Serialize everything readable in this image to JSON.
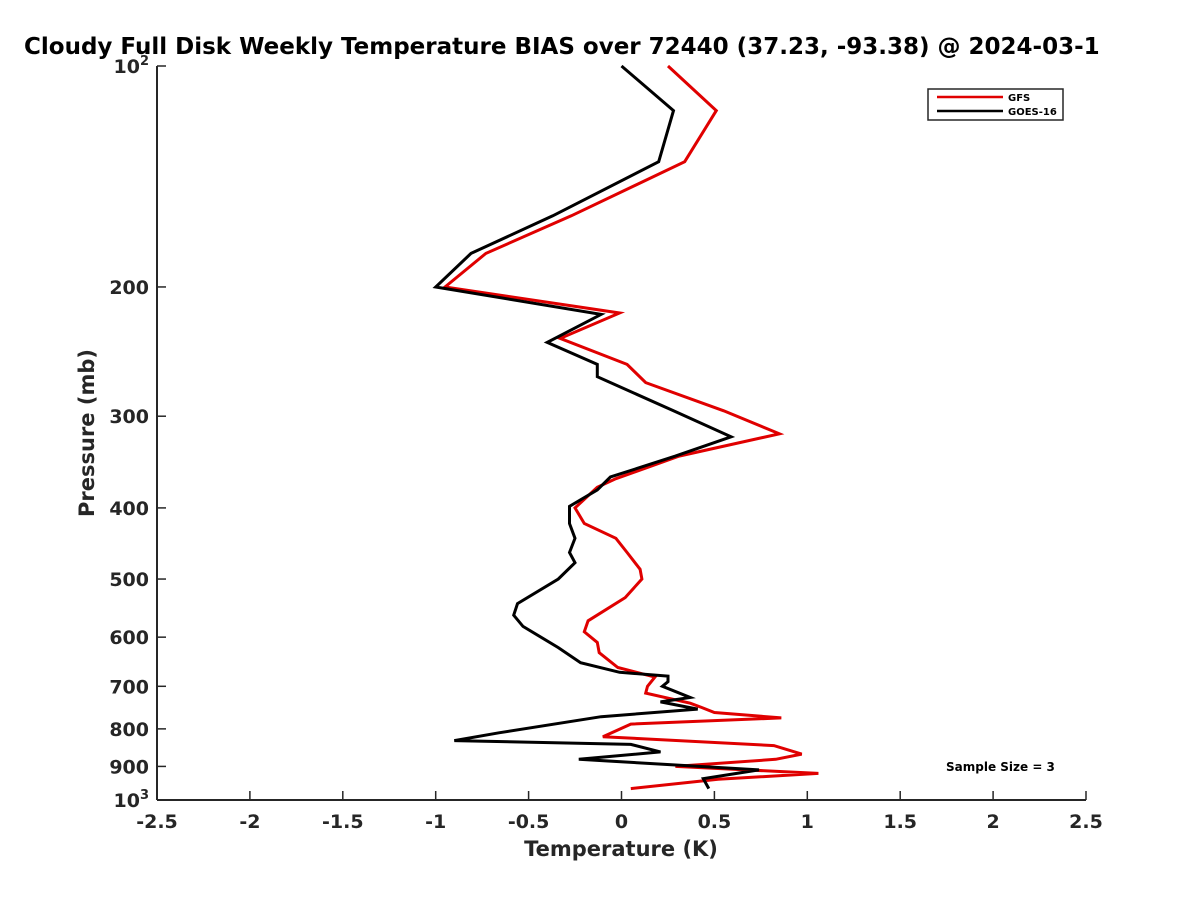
{
  "chart_data": {
    "type": "line",
    "title": "Cloudy Full Disk Weekly Temperature BIAS over 72440 (37.23, -93.38) @ 2024-03-1",
    "xlabel": "Temperature (K)",
    "ylabel": "Pressure (mb)",
    "xlim": [
      -2.5,
      2.5
    ],
    "ylim": [
      100,
      1000
    ],
    "y_scale": "log",
    "y_reversed": true,
    "grid": false,
    "legend_position": "top-right",
    "x_ticks": [
      "-2.5",
      "-2",
      "-1.5",
      "-1",
      "-0.5",
      "0",
      "0.5",
      "1",
      "1.5",
      "2",
      "2.5"
    ],
    "x_tick_values": [
      -2.5,
      -2,
      -1.5,
      -1,
      -0.5,
      0,
      0.5,
      1,
      1.5,
      2,
      2.5
    ],
    "y_ticks": [
      {
        "value": 100,
        "base": "10",
        "exp": "2"
      },
      {
        "value": 200,
        "label": "200"
      },
      {
        "value": 300,
        "label": "300"
      },
      {
        "value": 400,
        "label": "400"
      },
      {
        "value": 500,
        "label": "500"
      },
      {
        "value": 600,
        "label": "600"
      },
      {
        "value": 700,
        "label": "700"
      },
      {
        "value": 800,
        "label": "800"
      },
      {
        "value": 900,
        "label": "900"
      },
      {
        "value": 1000,
        "base": "10",
        "exp": "3"
      }
    ],
    "annotation": "Sample Size = 3",
    "series": [
      {
        "name": "GFS",
        "color": "#e00000",
        "points": [
          [
            0.25,
            100
          ],
          [
            0.51,
            115
          ],
          [
            0.34,
            135
          ],
          [
            -0.27,
            160
          ],
          [
            -0.73,
            180
          ],
          [
            -0.95,
            200
          ],
          [
            -0.01,
            217
          ],
          [
            -0.33,
            235
          ],
          [
            0.03,
            255
          ],
          [
            0.13,
            270
          ],
          [
            0.55,
            295
          ],
          [
            0.85,
            317
          ],
          [
            0.31,
            340
          ],
          [
            -0.03,
            365
          ],
          [
            -0.13,
            375
          ],
          [
            -0.25,
            400
          ],
          [
            -0.2,
            420
          ],
          [
            -0.03,
            440
          ],
          [
            0.03,
            460
          ],
          [
            0.1,
            485
          ],
          [
            0.11,
            500
          ],
          [
            0.02,
            530
          ],
          [
            -0.18,
            570
          ],
          [
            -0.2,
            590
          ],
          [
            -0.13,
            610
          ],
          [
            -0.12,
            630
          ],
          [
            -0.02,
            660
          ],
          [
            0.18,
            680
          ],
          [
            0.14,
            700
          ],
          [
            0.13,
            715
          ],
          [
            0.37,
            738
          ],
          [
            0.43,
            748
          ],
          [
            0.5,
            760
          ],
          [
            0.86,
            773
          ],
          [
            0.05,
            788
          ],
          [
            -0.1,
            820
          ],
          [
            0.82,
            843
          ],
          [
            0.97,
            866
          ],
          [
            0.83,
            880
          ],
          [
            0.29,
            900
          ],
          [
            1.06,
            920
          ],
          [
            0.52,
            937
          ],
          [
            0.05,
            965
          ]
        ]
      },
      {
        "name": "GOES-16",
        "color": "#000000",
        "points": [
          [
            0.0,
            100
          ],
          [
            0.28,
            115
          ],
          [
            0.2,
            135
          ],
          [
            -0.37,
            160
          ],
          [
            -0.81,
            180
          ],
          [
            -1.0,
            200
          ],
          [
            -0.11,
            218
          ],
          [
            -0.4,
            238
          ],
          [
            -0.13,
            255
          ],
          [
            -0.13,
            265
          ],
          [
            0.28,
            295
          ],
          [
            0.59,
            320
          ],
          [
            0.29,
            340
          ],
          [
            -0.06,
            363
          ],
          [
            -0.13,
            378
          ],
          [
            -0.28,
            398
          ],
          [
            -0.28,
            420
          ],
          [
            -0.25,
            440
          ],
          [
            -0.28,
            460
          ],
          [
            -0.25,
            475
          ],
          [
            -0.34,
            500
          ],
          [
            -0.56,
            540
          ],
          [
            -0.58,
            560
          ],
          [
            -0.53,
            580
          ],
          [
            -0.34,
            620
          ],
          [
            -0.22,
            650
          ],
          [
            -0.01,
            670
          ],
          [
            0.25,
            678
          ],
          [
            0.25,
            690
          ],
          [
            0.22,
            700
          ],
          [
            0.37,
            725
          ],
          [
            0.21,
            735
          ],
          [
            0.41,
            752
          ],
          [
            -0.11,
            770
          ],
          [
            -0.66,
            810
          ],
          [
            -0.9,
            830
          ],
          [
            0.05,
            840
          ],
          [
            0.21,
            860
          ],
          [
            -0.23,
            880
          ],
          [
            0.74,
            910
          ],
          [
            0.44,
            935
          ],
          [
            0.47,
            965
          ]
        ]
      }
    ]
  }
}
